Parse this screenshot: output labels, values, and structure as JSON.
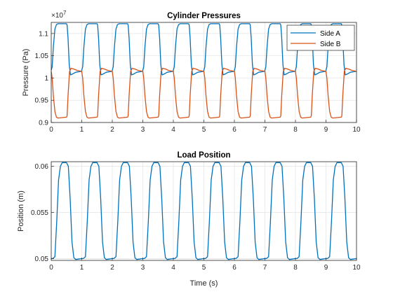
{
  "chart_data": [
    {
      "type": "line",
      "title": "Cylinder Pressures",
      "xlabel": "",
      "ylabel": "Pressure (Pa)",
      "exponent_label": "×10",
      "exponent_power": "7",
      "xlim": [
        0,
        10
      ],
      "ylim": [
        0.9,
        1.125
      ],
      "xticks": [
        "0",
        "1",
        "2",
        "3",
        "4",
        "5",
        "6",
        "7",
        "8",
        "9",
        "10"
      ],
      "yticks": [
        "0.9",
        "0.95",
        "1",
        "1.05",
        "1.1"
      ],
      "ytick_values": [
        0.9,
        0.95,
        1.0,
        1.05,
        1.1
      ],
      "grid": true,
      "legend": "top-right",
      "legend_labels": [
        "Side A",
        "Side B"
      ],
      "colors": [
        "#0072BD",
        "#D95319"
      ],
      "period": 1.0,
      "first_cycle_start": 0.0,
      "series": [
        {
          "name": "Side A",
          "color": "#0072BD",
          "points": [
            [
              0,
              1.0175
            ],
            [
              0.03,
              1.025
            ],
            [
              0.07,
              1.07
            ],
            [
              0.12,
              1.11
            ],
            [
              0.17,
              1.12
            ],
            [
              0.22,
              1.122
            ],
            [
              0.5,
              1.122
            ],
            [
              0.52,
              1.119
            ],
            [
              0.55,
              1.09
            ],
            [
              0.59,
              1.03
            ],
            [
              0.63,
              1.007
            ],
            [
              0.7,
              1.009
            ],
            [
              0.8,
              1.013
            ],
            [
              1.0,
              1.015
            ]
          ]
        },
        {
          "name": "Side B",
          "color": "#D95319",
          "points": [
            [
              0,
              1.015
            ],
            [
              0.03,
              1.0
            ],
            [
              0.07,
              0.96
            ],
            [
              0.12,
              0.925
            ],
            [
              0.17,
              0.912
            ],
            [
              0.22,
              0.91
            ],
            [
              0.5,
              0.912
            ],
            [
              0.52,
              0.915
            ],
            [
              0.55,
              0.96
            ],
            [
              0.6,
              1.015
            ],
            [
              0.65,
              1.022
            ],
            [
              0.75,
              1.02
            ],
            [
              0.85,
              1.017
            ],
            [
              1.0,
              1.015
            ]
          ]
        }
      ]
    },
    {
      "type": "line",
      "title": "Load Position",
      "xlabel": "Time (s)",
      "ylabel": "Position (m)",
      "xlim": [
        0,
        10
      ],
      "ylim": [
        0.0498,
        0.0605
      ],
      "xticks": [
        "0",
        "1",
        "2",
        "3",
        "4",
        "5",
        "6",
        "7",
        "8",
        "9",
        "10"
      ],
      "yticks": [
        "0.05",
        "0.055",
        "0.06"
      ],
      "ytick_values": [
        0.05,
        0.055,
        0.06
      ],
      "grid": true,
      "colors": [
        "#0072BD"
      ],
      "period": 1.0,
      "first_cycle_start": 0.0,
      "series": [
        {
          "name": "",
          "color": "#0072BD",
          "points": [
            [
              0,
              0.05
            ],
            [
              0.05,
              0.05
            ],
            [
              0.12,
              0.0502
            ],
            [
              0.18,
              0.054
            ],
            [
              0.24,
              0.0585
            ],
            [
              0.3,
              0.06
            ],
            [
              0.36,
              0.0604
            ],
            [
              0.5,
              0.0604
            ],
            [
              0.56,
              0.06
            ],
            [
              0.62,
              0.0565
            ],
            [
              0.68,
              0.0518
            ],
            [
              0.74,
              0.0501
            ],
            [
              0.8,
              0.0499
            ],
            [
              1.0,
              0.05
            ]
          ]
        }
      ]
    }
  ]
}
